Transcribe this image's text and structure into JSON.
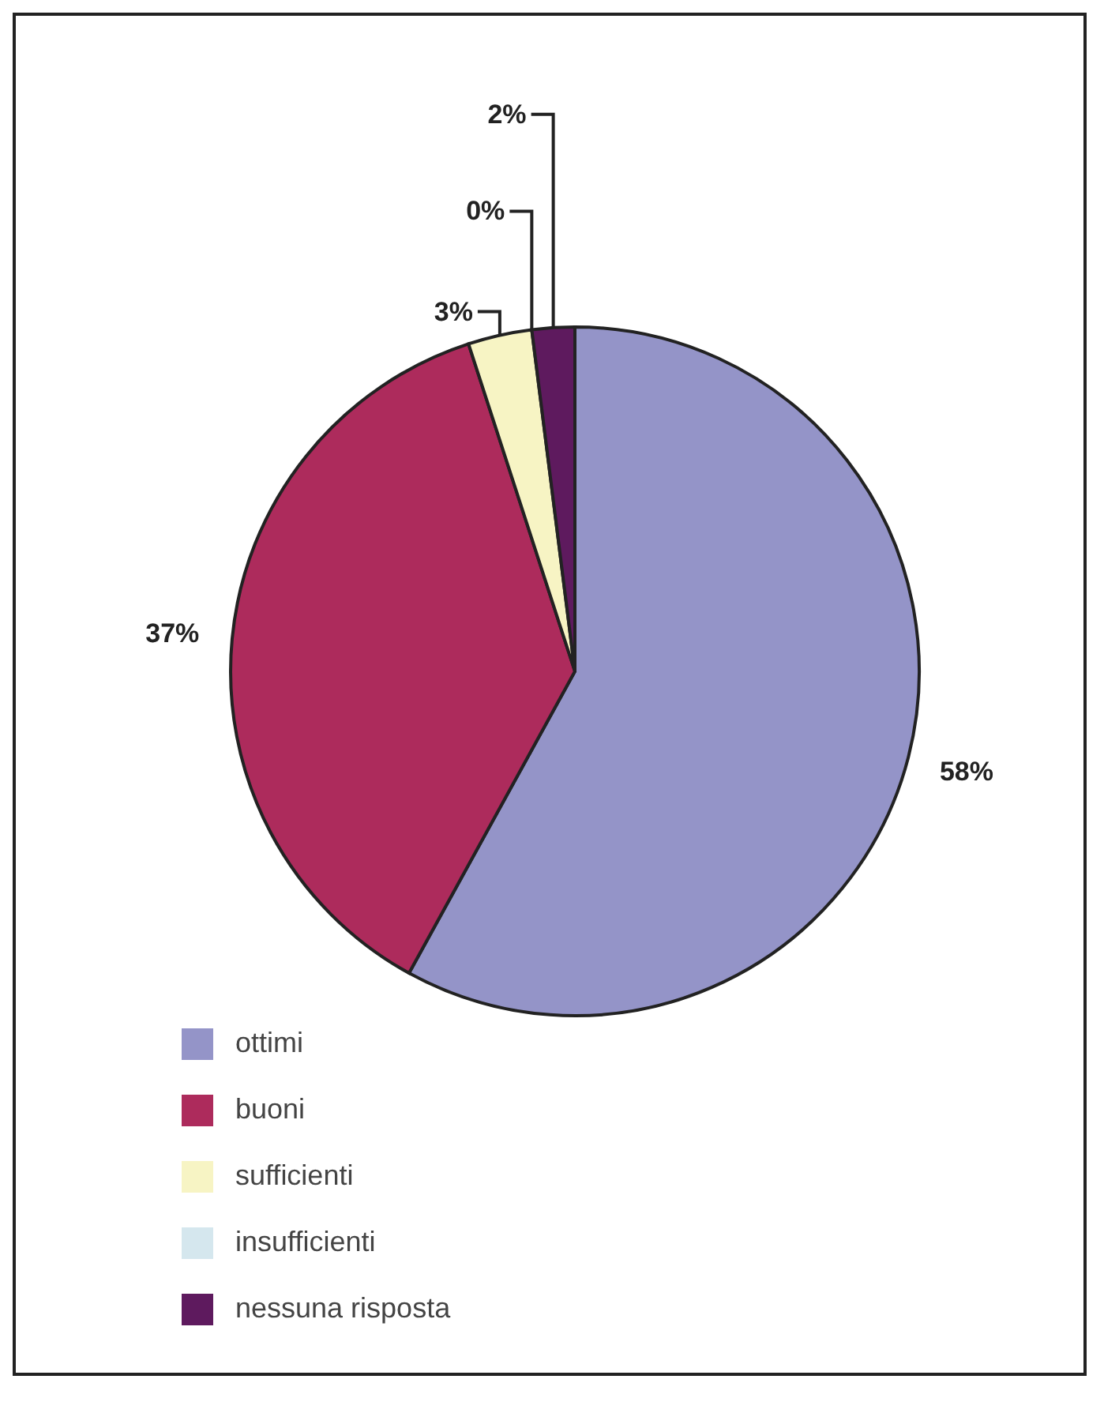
{
  "chart_data": {
    "type": "pie",
    "categories": [
      "ottimi",
      "buoni",
      "sufficienti",
      "insufficienti",
      "nessuna risposta"
    ],
    "values": [
      58,
      37,
      3,
      0,
      2
    ],
    "colors": [
      "#9494c8",
      "#ad2b5c",
      "#f7f4c4",
      "#d5e7ee",
      "#5e1a5e"
    ],
    "value_labels": [
      "58%",
      "37%",
      "3%",
      "0%",
      "2%"
    ],
    "legend": "bottom"
  }
}
